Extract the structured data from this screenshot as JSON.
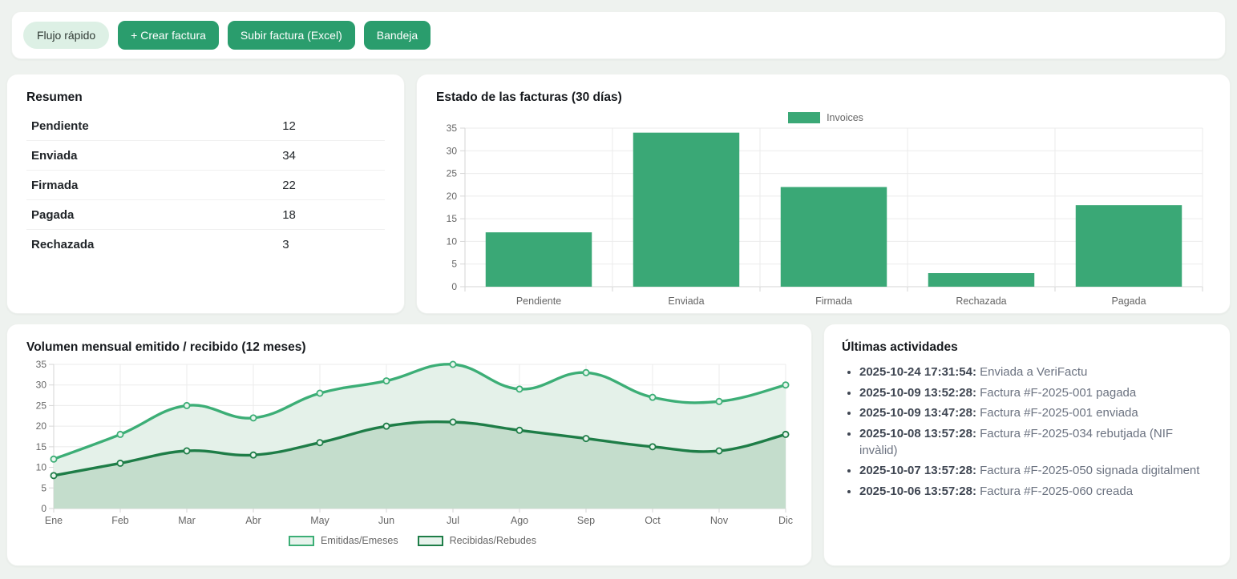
{
  "toolbar": {
    "flow_label": "Flujo rápido",
    "create_label": "+ Crear factura",
    "upload_label": "Subir factura (Excel)",
    "inbox_label": "Bandeja"
  },
  "summary": {
    "title": "Resumen",
    "rows": [
      {
        "label": "Pendiente",
        "value": "12"
      },
      {
        "label": "Enviada",
        "value": "34"
      },
      {
        "label": "Firmada",
        "value": "22"
      },
      {
        "label": "Pagada",
        "value": "18"
      },
      {
        "label": "Rechazada",
        "value": "3"
      }
    ]
  },
  "chart_data": [
    {
      "type": "bar",
      "title": "Estado de las facturas (30 días)",
      "categories": [
        "Pendiente",
        "Enviada",
        "Firmada",
        "Rechazada",
        "Pagada"
      ],
      "series": [
        {
          "name": "Invoices",
          "values": [
            12,
            34,
            22,
            3,
            18
          ]
        }
      ],
      "xlabel": "",
      "ylabel": "",
      "ylim": [
        0,
        35
      ],
      "ytick_step": 5,
      "grid": true,
      "legend_position": "top",
      "bar_color": "#3aa876"
    },
    {
      "type": "area",
      "title": "Volumen mensual emitido / recibido (12 meses)",
      "categories": [
        "Ene",
        "Feb",
        "Mar",
        "Abr",
        "May",
        "Jun",
        "Jul",
        "Ago",
        "Sep",
        "Oct",
        "Nov",
        "Dic"
      ],
      "series": [
        {
          "name": "Emitidas/Emeses",
          "values": [
            12,
            18,
            25,
            22,
            28,
            31,
            35,
            29,
            33,
            27,
            26,
            30
          ],
          "line_color": "#3cae76",
          "fill_color": "#e4f1e9"
        },
        {
          "name": "Recibidas/Rebudes",
          "values": [
            8,
            11,
            14,
            13,
            16,
            20,
            21,
            19,
            17,
            15,
            14,
            18
          ],
          "line_color": "#1e7d47",
          "fill_color": "#c4ddcc"
        }
      ],
      "xlabel": "",
      "ylabel": "",
      "ylim": [
        0,
        35
      ],
      "ytick_step": 5,
      "grid": true,
      "legend_position": "bottom"
    }
  ],
  "activities": {
    "title": "Últimas actividades",
    "items": [
      {
        "timestamp": "2025-10-24 17:31:54:",
        "text": "Enviada a VeriFactu"
      },
      {
        "timestamp": "2025-10-09 13:52:28:",
        "text": "Factura #F-2025-001 pagada"
      },
      {
        "timestamp": "2025-10-09 13:47:28:",
        "text": "Factura #F-2025-001 enviada"
      },
      {
        "timestamp": "2025-10-08 13:57:28:",
        "text": "Factura #F-2025-034 rebutjada (NIF invàlid)"
      },
      {
        "timestamp": "2025-10-07 13:57:28:",
        "text": "Factura #F-2025-050 signada digitalment"
      },
      {
        "timestamp": "2025-10-06 13:57:28:",
        "text": "Factura #F-2025-060 creada"
      }
    ]
  },
  "colors": {
    "accent_button": "#2a9d6d",
    "pill_bg": "#ddf0e5",
    "bar": "#3aa876",
    "line_emitidas": "#3cae76",
    "line_recibidas": "#1e7d47",
    "fill_emitidas": "#e4f1e9",
    "fill_recibidas": "#c4ddcc",
    "page_bg": "#eef2ef",
    "grid_line": "#ebebeb",
    "axis_line": "#d6d6d6",
    "tick_text": "#666666"
  }
}
